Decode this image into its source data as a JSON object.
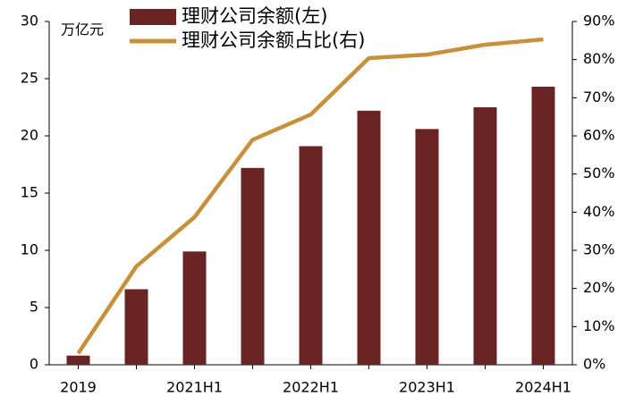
{
  "chart_data": {
    "type": "bar_line",
    "y_label": "万亿元",
    "categories": [
      "2019",
      null,
      "2021H1",
      null,
      "2022H1",
      null,
      "2023H1",
      null,
      "2024H1"
    ],
    "series": [
      {
        "name": "理财公司余额(左)",
        "color": "#6b2424",
        "type": "bar",
        "values": [
          0.8,
          6.6,
          9.9,
          17.2,
          19.1,
          22.2,
          20.6,
          22.5,
          24.3
        ]
      },
      {
        "name": "理财公司余额占比(右)",
        "color": "#c8903a",
        "type": "line",
        "axis": "y2",
        "values": [
          3,
          25.8,
          38.7,
          59,
          65.6,
          80.4,
          81.3,
          83.9,
          85.3
        ]
      }
    ],
    "ylim": [
      0,
      30
    ],
    "yticks": [
      0,
      5,
      10,
      15,
      20,
      25,
      30
    ],
    "y2lim": [
      0,
      90
    ],
    "y2ticks": [
      {
        "value": 0,
        "label": "0%"
      },
      {
        "value": 10,
        "label": "10%"
      },
      {
        "value": 20,
        "label": "20%"
      },
      {
        "value": 30,
        "label": "30%"
      },
      {
        "value": 40,
        "label": "40%"
      },
      {
        "value": 50,
        "label": "50%"
      },
      {
        "value": 60,
        "label": "60%"
      },
      {
        "value": 70,
        "label": "70%"
      },
      {
        "value": 80,
        "label": "80%"
      },
      {
        "value": 90,
        "label": "90%"
      }
    ]
  }
}
